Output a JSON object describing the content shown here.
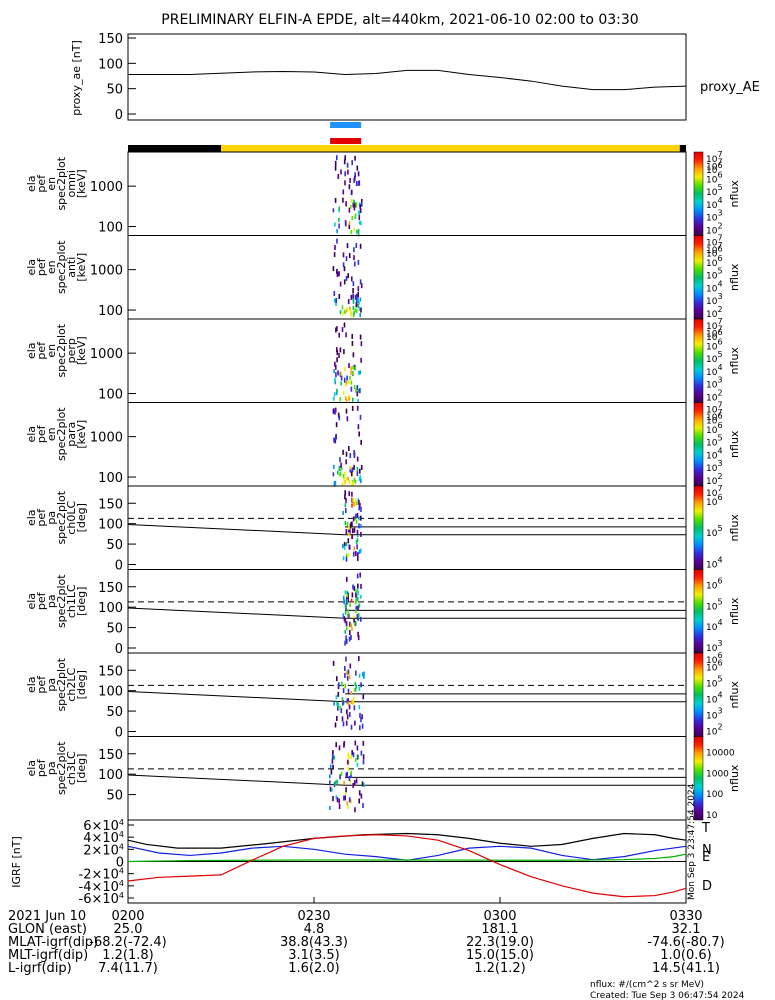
{
  "title": "PRELIMINARY ELFIN-A EPDE, alt=440km, 2021-06-10 02:00 to 03:30",
  "timestamp_side": "Mon Sep 3 23:47:54 2024",
  "footer": {
    "units": "nflux: #/(cm^2 s sr MeV)",
    "created": "Created: Tue Sep  3 06:47:54 2024"
  },
  "ephemeris": {
    "rows": [
      {
        "label": "2021 Jun 10",
        "values": [
          "0200",
          "0230",
          "0300",
          "0330"
        ]
      },
      {
        "label": "GLON (east)",
        "values": [
          "25.0",
          "4.8",
          "181.1",
          "32.1"
        ]
      },
      {
        "label": "MLAT-igrf(dip)",
        "values": [
          "-68.2(-72.4)",
          "38.8(43.3)",
          "22.3(19.0)",
          "-74.6(-80.7)"
        ]
      },
      {
        "label": "MLT-igrf(dip)",
        "values": [
          "1.2(1.8)",
          "3.1(3.5)",
          "15.0(15.0)",
          "1.0(0.6)"
        ]
      },
      {
        "label": "L-igrf(dip)",
        "values": [
          "7.4(11.7)",
          "1.6(2.0)",
          "1.2(1.2)",
          "14.5(41.1)"
        ]
      }
    ]
  },
  "colorbar_colors": [
    "#3a0050",
    "#5a0090",
    "#3030e0",
    "#0090ff",
    "#00d0d0",
    "#00c060",
    "#50e000",
    "#f0f000",
    "#ffa000",
    "#ff2000",
    "#e00000"
  ],
  "chart_data": [
    {
      "type": "line",
      "panel": "proxy_ae",
      "ylabel": "proxy_ae [nT]",
      "legend": "proxy_AE",
      "ylim": [
        0,
        150
      ],
      "yticks": [
        "0",
        "50",
        "100",
        "150"
      ],
      "x": [
        0,
        10,
        20,
        25,
        30,
        35,
        40,
        45,
        50,
        55,
        60,
        65,
        70,
        75,
        80,
        85,
        90
      ],
      "values": [
        78,
        78,
        83,
        84,
        83,
        78,
        80,
        86,
        86,
        78,
        72,
        65,
        55,
        48,
        48,
        53,
        55
      ]
    },
    {
      "type": "bar",
      "panel": "status_bars",
      "segments": [
        {
          "color": "#000000",
          "x_start": 0,
          "x_end": 15
        },
        {
          "color": "#ffd400",
          "x_start": 15,
          "x_end": 89
        },
        {
          "color": "#000000",
          "x_start": 89,
          "x_end": 90
        }
      ],
      "markers": [
        {
          "color": "#1e90ff",
          "x_start": 32.6,
          "x_end": 37.6
        },
        {
          "color": "#e00000",
          "x_start": 32.6,
          "x_end": 37.6
        }
      ]
    },
    {
      "type": "heatmap",
      "panel": "omni",
      "ylabel": [
        "ela",
        "pef",
        "en",
        "spec2plot",
        "omni",
        "[keV]"
      ],
      "yscale": "log",
      "ylim": [
        60,
        7000
      ],
      "yticks": [
        "100",
        "1000"
      ],
      "activity_x": [
        33,
        37.6
      ],
      "core_y": [
        70,
        500
      ],
      "colorbar": {
        "label": "nflux",
        "ticks": [
          "10^2",
          "10^3",
          "10^4",
          "10^5",
          "10^6",
          "10^7"
        ],
        "top": "10^7",
        "top_sub": "10^6"
      }
    },
    {
      "type": "heatmap",
      "panel": "anti",
      "ylabel": [
        "ela",
        "pef",
        "en",
        "spec2plot",
        "anti",
        "[keV]"
      ],
      "yscale": "log",
      "ylim": [
        60,
        7000
      ],
      "yticks": [
        "100",
        "1000"
      ],
      "activity_x": [
        33,
        37.6
      ],
      "core_y": [
        80,
        250
      ],
      "colorbar": {
        "label": "nflux",
        "ticks": [
          "10^2",
          "10^3",
          "10^4",
          "10^5",
          "10^6",
          "10^7"
        ],
        "top": "10^7",
        "top_sub": "10^6"
      }
    },
    {
      "type": "heatmap",
      "panel": "perp",
      "ylabel": [
        "ela",
        "pef",
        "en",
        "spec2plot",
        "perp",
        "[keV]"
      ],
      "yscale": "log",
      "ylim": [
        60,
        7000
      ],
      "yticks": [
        "100",
        "1000"
      ],
      "activity_x": [
        33,
        37.6
      ],
      "core_y": [
        70,
        500
      ],
      "colorbar": {
        "label": "nflux",
        "ticks": [
          "10^2",
          "10^3",
          "10^4",
          "10^5",
          "10^6",
          "10^7"
        ],
        "top": "10^7",
        "top_sub": "10^6"
      }
    },
    {
      "type": "heatmap",
      "panel": "para",
      "ylabel": [
        "ela",
        "pef",
        "en",
        "spec2plot",
        "para",
        "[keV]"
      ],
      "yscale": "log",
      "ylim": [
        60,
        7000
      ],
      "yticks": [
        "100",
        "1000"
      ],
      "activity_x": [
        33,
        37.6
      ],
      "core_y": [
        70,
        200
      ],
      "colorbar": {
        "label": "nflux",
        "ticks": [
          "10^2",
          "10^3",
          "10^4",
          "10^5",
          "10^6",
          "10^7"
        ],
        "top": "10^7",
        "top_sub": "10^6"
      }
    },
    {
      "type": "heatmap",
      "panel": "ch0LC",
      "ylabel": [
        "ela",
        "pef",
        "pa",
        "spec2plot",
        "ch0LC",
        "[deg]"
      ],
      "yscale": "linear",
      "ylim": [
        0,
        180
      ],
      "yticks": [
        "0",
        "50",
        "100",
        "150"
      ],
      "activity_x": [
        34.5,
        37.5
      ],
      "core_y": [
        20,
        165
      ],
      "lines": {
        "solid_start": 98,
        "solid_end": 73,
        "dashed": 113,
        "solid_flat": 92
      },
      "colorbar": {
        "label": "nflux",
        "ticks": [
          "10^4",
          "10^5",
          "10^6"
        ],
        "top": "10^7",
        "top_sub": ""
      }
    },
    {
      "type": "heatmap",
      "panel": "ch1LC",
      "ylabel": [
        "ela",
        "pef",
        "pa",
        "spec2plot",
        "ch1LC",
        "[deg]"
      ],
      "yscale": "linear",
      "ylim": [
        0,
        180
      ],
      "yticks": [
        "0",
        "50",
        "100",
        "150"
      ],
      "activity_x": [
        34.5,
        37.5
      ],
      "core_y": [
        40,
        150
      ],
      "lines": {
        "solid_start": 98,
        "solid_end": 73,
        "dashed": 113,
        "solid_flat": 92
      },
      "colorbar": {
        "label": "nflux",
        "ticks": [
          "10^3",
          "10^4",
          "10^5",
          "10^6"
        ],
        "top": "",
        "top_sub": ""
      }
    },
    {
      "type": "heatmap",
      "panel": "ch2LC",
      "ylabel": [
        "ela",
        "pef",
        "pa",
        "spec2plot",
        "ch2LC",
        "[deg]"
      ],
      "yscale": "linear",
      "ylim": [
        0,
        180
      ],
      "yticks": [
        "0",
        "50",
        "100",
        "150"
      ],
      "activity_x": [
        33,
        38
      ],
      "core_y": [
        50,
        150
      ],
      "lines": {
        "solid_start": 98,
        "solid_end": 73,
        "dashed": 113,
        "solid_flat": 92
      },
      "colorbar": {
        "label": "nflux",
        "ticks": [
          "10^2",
          "10^3",
          "10^4",
          "10^5",
          "10^6"
        ],
        "top": "10^6",
        "top_sub": ""
      }
    },
    {
      "type": "heatmap",
      "panel": "ch3LC",
      "ylabel": [
        "ela",
        "pef",
        "pa",
        "spec2plot",
        "ch3LC",
        "[deg]"
      ],
      "yscale": "linear",
      "ylim": [
        0,
        180
      ],
      "yticks": [
        "50",
        "100",
        "150"
      ],
      "activity_x": [
        32.3,
        38
      ],
      "core_y": [
        20,
        170
      ],
      "lines": {
        "solid_start": 98,
        "solid_end": 73,
        "dashed": 113,
        "solid_flat": 92
      },
      "colorbar": {
        "label": "nflux",
        "ticks": [
          "10",
          "100",
          "1000",
          "10000"
        ],
        "top": "",
        "top_sub": ""
      }
    },
    {
      "type": "line",
      "panel": "igrf",
      "ylabel": "IGRF [nT]",
      "ylim": [
        -60000,
        60000
      ],
      "yticks": [
        "-6×10^4",
        "-4×10^4",
        "-2×10^4",
        "0",
        "2×10^4",
        "4×10^4",
        "6×10^4"
      ],
      "xlim": [
        0,
        90
      ],
      "xticks": [
        "0200",
        "0230",
        "0300",
        "0330"
      ],
      "series": [
        {
          "name": "T",
          "color": "#000000",
          "x": [
            0,
            3,
            8,
            15,
            22,
            30,
            38,
            45,
            50,
            55,
            60,
            65,
            70,
            75,
            80,
            85,
            88,
            90
          ],
          "values": [
            35000,
            28000,
            22000,
            22000,
            29000,
            38000,
            44000,
            46000,
            44000,
            38000,
            30000,
            25000,
            28000,
            38000,
            46000,
            44000,
            38000,
            35000
          ]
        },
        {
          "name": "N",
          "color": "#1020e0",
          "x": [
            0,
            5,
            10,
            15,
            20,
            25,
            30,
            35,
            40,
            45,
            50,
            55,
            60,
            65,
            70,
            75,
            80,
            85,
            90
          ],
          "values": [
            25000,
            14000,
            10000,
            14000,
            22000,
            25000,
            20000,
            12000,
            8000,
            2000,
            10000,
            22000,
            25000,
            22000,
            10000,
            3000,
            8000,
            18000,
            25000
          ]
        },
        {
          "name": "E",
          "color": "#00b000",
          "x": [
            0,
            10,
            20,
            30,
            40,
            50,
            60,
            70,
            80,
            85,
            88,
            90
          ],
          "values": [
            0,
            1500,
            2000,
            2500,
            2500,
            2500,
            2000,
            2000,
            3000,
            5000,
            8000,
            12000
          ]
        },
        {
          "name": "D",
          "color": "#e00000",
          "x": [
            0,
            5,
            10,
            15,
            20,
            25,
            30,
            35,
            40,
            45,
            50,
            55,
            60,
            65,
            70,
            75,
            80,
            85,
            88,
            90
          ],
          "values": [
            -32000,
            -26000,
            -24000,
            -22000,
            2000,
            25000,
            38000,
            42000,
            44000,
            42000,
            35000,
            18000,
            -5000,
            -25000,
            -40000,
            -52000,
            -58000,
            -56000,
            -50000,
            -44000
          ]
        }
      ]
    }
  ]
}
